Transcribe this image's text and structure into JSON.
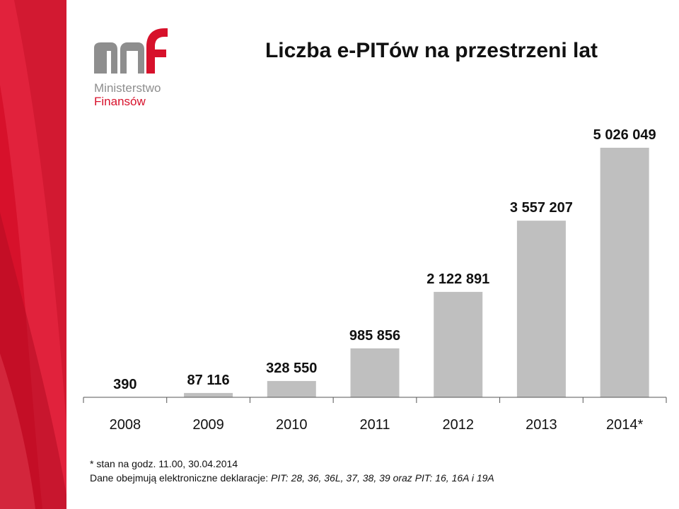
{
  "logo": {
    "line1": "Ministerstwo",
    "line2": "Finansów"
  },
  "colors": {
    "brand_red": "#d7112b",
    "band_red_light": "#e3263f",
    "band_red_dark": "#b50d22",
    "logo_gray": "#8e8e8e",
    "bar_fill": "#bfbfbf",
    "axis": "#555555",
    "text": "#111111"
  },
  "chart_data": {
    "type": "bar",
    "title": "Liczba e-PITów na przestrzeni lat",
    "categories": [
      "2008",
      "2009",
      "2010",
      "2011",
      "2012",
      "2013",
      "2014*"
    ],
    "values": [
      390,
      87116,
      328550,
      985856,
      2122891,
      3557207,
      5026049
    ],
    "data_labels": [
      "390",
      "87 116",
      "328 550",
      "985 856",
      "2 122 891",
      "3 557 207",
      "5 026 049"
    ],
    "xlabel": "",
    "ylabel": "",
    "ylim": [
      0,
      5026049
    ],
    "grid": false,
    "legend": "none"
  },
  "footnote": {
    "line1": "* stan na godz. 11.00, 30.04.2014",
    "line2_prefix": "Dane obejmują elektroniczne deklaracje: ",
    "line2_italic": "PIT: 28, 36, 36L, 37, 38, 39 oraz PIT: 16, 16A i 19A"
  }
}
